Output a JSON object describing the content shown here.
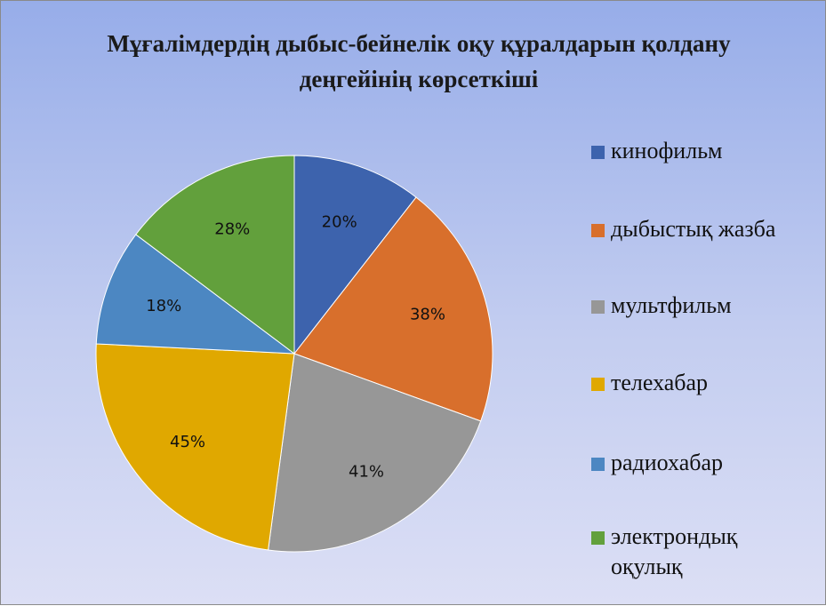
{
  "chart_data": {
    "type": "pie",
    "title": "Мұғалімдердің дыбыс-бейнелік оқу құралдарын қолдану деңгейінің  көрсеткіші",
    "categories": [
      "кинофильм",
      "дыбыстық жазба",
      "мультфильм",
      "телехабар",
      "радиохабар",
      "электрондық оқулық"
    ],
    "values": [
      20,
      38,
      41,
      45,
      18,
      28
    ],
    "value_labels": [
      "20%",
      "38%",
      "41%",
      "45%",
      "18%",
      "28%"
    ],
    "colors": [
      "#3d63ad",
      "#d86f2c",
      "#979797",
      "#e0a800",
      "#4c87c2",
      "#62a03c"
    ],
    "legend": "right"
  }
}
